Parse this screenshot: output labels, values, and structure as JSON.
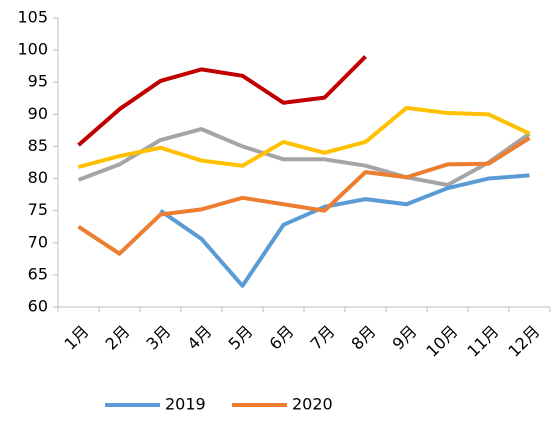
{
  "chart_data": {
    "type": "line",
    "categories": [
      "1月",
      "2月",
      "3月",
      "4月",
      "5月",
      "6月",
      "7月",
      "8月",
      "9月",
      "10月",
      "11月",
      "12月"
    ],
    "series": [
      {
        "color": "#a5a5a5",
        "values": [
          79.8,
          82.2,
          86,
          87.7,
          85,
          83,
          83,
          82,
          80.2,
          79,
          82.5,
          87
        ]
      },
      {
        "color": "#ffc000",
        "values": [
          81.8,
          83.5,
          84.8,
          82.8,
          82,
          85.7,
          84,
          85.7,
          91,
          90.2,
          90,
          87
        ]
      },
      {
        "color": "#c00000",
        "values": [
          85.2,
          90.8,
          95.2,
          97,
          96,
          91.8,
          92.6,
          99,
          null,
          null,
          null,
          null
        ]
      },
      {
        "name": "2019",
        "color": "#5b9bd5",
        "values": [
          null,
          null,
          75,
          70.6,
          63.3,
          72.8,
          75.6,
          76.8,
          76,
          78.5,
          80,
          80.5
        ]
      },
      {
        "name": "2020",
        "color": "#ed7d31",
        "values": [
          72.5,
          68.3,
          74.4,
          75.2,
          77,
          76,
          75,
          81,
          80.2,
          82.2,
          82.3,
          86.3
        ]
      }
    ],
    "ylim": [
      60,
      105
    ],
    "yticks": [
      60,
      65,
      70,
      75,
      80,
      85,
      90,
      95,
      100,
      105
    ],
    "grid": false
  }
}
